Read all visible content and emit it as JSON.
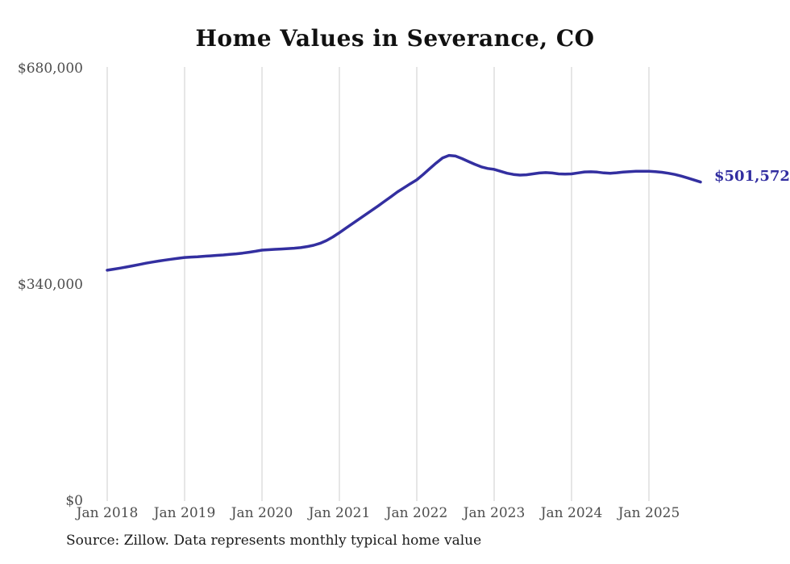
{
  "chart_data": {
    "type": "line",
    "title": "Home Values in Severance, CO",
    "series_name": "Typical home value",
    "unit": "USD",
    "x_frequency": "monthly",
    "x_start": "2018-01",
    "x_end": "2025-09",
    "x_ticks": [
      "Jan 2018",
      "Jan 2019",
      "Jan 2020",
      "Jan 2021",
      "Jan 2022",
      "Jan 2023",
      "Jan 2024",
      "Jan 2025"
    ],
    "y_ticks": [
      {
        "value": 0,
        "label": "$0"
      },
      {
        "value": 340000,
        "label": "$340,000"
      },
      {
        "value": 680000,
        "label": "$680,000"
      }
    ],
    "ylim": [
      0,
      680000
    ],
    "grid": "vertical-only",
    "line_color": "#332fa0",
    "gridline_color": "#cccccc",
    "end_label": "$501,572",
    "last_value": 501572,
    "values": [
      363000,
      364600,
      366300,
      368000,
      370000,
      372000,
      374000,
      375800,
      377400,
      378900,
      380300,
      381700,
      383000,
      383600,
      384200,
      384900,
      385600,
      386300,
      387000,
      387800,
      388700,
      389800,
      391200,
      392800,
      394500,
      395200,
      395800,
      396300,
      396900,
      397600,
      398500,
      400100,
      402200,
      405200,
      409600,
      415300,
      422000,
      429000,
      436000,
      443000,
      450000,
      457000,
      464000,
      471300,
      478600,
      486000,
      492500,
      499000,
      505000,
      513500,
      522500,
      531500,
      539500,
      543500,
      542500,
      538500,
      534000,
      529500,
      525500,
      523000,
      521500,
      518500,
      515500,
      513500,
      512500,
      513000,
      514500,
      515800,
      516500,
      515800,
      514500,
      514000,
      514500,
      516000,
      517500,
      517800,
      517200,
      516000,
      515500,
      516200,
      517300,
      518000,
      518500,
      518600,
      518500,
      518000,
      517000,
      515500,
      513500,
      511000,
      508000,
      504800,
      501572
    ]
  },
  "source_note": "Source: Zillow. Data represents monthly typical home value"
}
